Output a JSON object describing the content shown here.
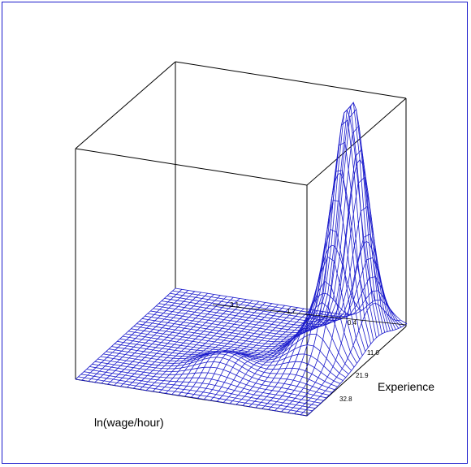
{
  "chart_data": {
    "type": "surface",
    "x_axis": {
      "label": "ln(wage/hour)",
      "ticks": [
        "3.1",
        "1.7",
        "0.4"
      ]
    },
    "y_axis": {
      "label": "Experience",
      "ticks": [
        "11.0",
        "21.9",
        "32.8"
      ]
    },
    "surface": {
      "description_peaks": [
        {
          "ln_wage": 2.4,
          "experience": 5,
          "relative_height": 1.0
        },
        {
          "ln_wage": 2.5,
          "experience": 22,
          "relative_height": 0.12
        }
      ]
    }
  },
  "colors": {
    "mesh": "#1c1ccc",
    "frame_border": "#1c1ccc",
    "box": "#000000"
  }
}
